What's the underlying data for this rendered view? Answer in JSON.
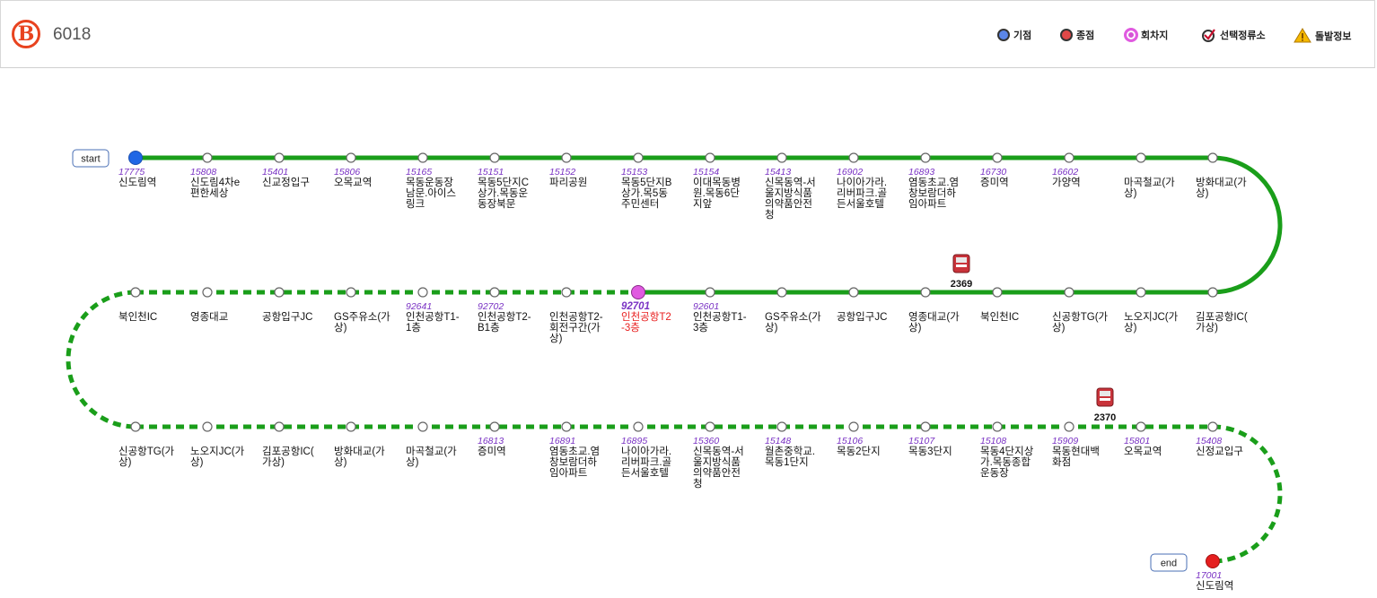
{
  "route": {
    "badge": "B",
    "number": "6018"
  },
  "legend": [
    {
      "label": "기점",
      "icon": "start-point-icon",
      "color": "#3b6fe0"
    },
    {
      "label": "종점",
      "icon": "end-point-icon",
      "color": "#e03b3b"
    },
    {
      "label": "회차지",
      "icon": "turnaround-icon",
      "color": "#e05ae0"
    },
    {
      "label": "선택정류소",
      "icon": "selected-stop-icon",
      "color": "#c8102e"
    },
    {
      "label": "돌발정보",
      "icon": "incident-warning-icon",
      "color": "#f5b800"
    }
  ],
  "tags": {
    "start": "start",
    "end": "end"
  },
  "colors": {
    "solid_line": "#1a9e1a",
    "dashed_line": "#1a9e1a",
    "start_dot": "#1f66e5",
    "end_dot": "#e51f1f",
    "turn_dot": "#e05ae0"
  },
  "rows": [
    [
      {
        "id": "17775",
        "name": [
          "신도림역"
        ]
      },
      {
        "id": "15808",
        "name": [
          "신도림4차e",
          "편한세상"
        ]
      },
      {
        "id": "15401",
        "name": [
          "신교정입구"
        ]
      },
      {
        "id": "15806",
        "name": [
          "오목교역"
        ]
      },
      {
        "id": "15165",
        "name": [
          "목동운동장",
          "남문.아이스",
          "링크"
        ]
      },
      {
        "id": "15151",
        "name": [
          "목동5단지C",
          "상가.목동운",
          "동장북문"
        ]
      },
      {
        "id": "15152",
        "name": [
          "파리공원"
        ]
      },
      {
        "id": "15153",
        "name": [
          "목동5단지B",
          "상가.목5동",
          "주민센터"
        ]
      },
      {
        "id": "15154",
        "name": [
          "이대목동병",
          "원.목동6단",
          "지앞"
        ]
      },
      {
        "id": "15413",
        "name": [
          "신목동역-서",
          "울지방식품",
          "의약품안전",
          "청"
        ]
      },
      {
        "id": "16902",
        "name": [
          "나이아가라.",
          "리버파크.골",
          "든서울호텔"
        ]
      },
      {
        "id": "16893",
        "name": [
          "염동초교.염",
          "창보람더하",
          "임아파트"
        ]
      },
      {
        "id": "16730",
        "name": [
          "증미역"
        ]
      },
      {
        "id": "16602",
        "name": [
          "가양역"
        ]
      },
      {
        "id": "",
        "name": [
          "마곡철교(가",
          "상)"
        ]
      },
      {
        "id": "",
        "name": [
          "방화대교(가",
          "상)"
        ]
      }
    ],
    [
      {
        "id": "",
        "name": [
          "북인천IC"
        ]
      },
      {
        "id": "",
        "name": [
          "영종대교"
        ]
      },
      {
        "id": "",
        "name": [
          "공항입구JC"
        ]
      },
      {
        "id": "",
        "name": [
          "GS주유소(가",
          "상)"
        ]
      },
      {
        "id": "92641",
        "name": [
          "인천공항T1-",
          "1층"
        ]
      },
      {
        "id": "92702",
        "name": [
          "인천공항T2-",
          "B1층"
        ]
      },
      {
        "id": "",
        "name": [
          "인천공항T2-",
          "회전구간(가",
          "상)"
        ]
      },
      {
        "id": "92701",
        "name": [
          "인천공항T2",
          "-3층"
        ],
        "selected": true
      },
      {
        "id": "92601",
        "name": [
          "인천공항T1-",
          "3층"
        ]
      },
      {
        "id": "",
        "name": [
          "GS주유소(가",
          "상)"
        ]
      },
      {
        "id": "",
        "name": [
          "공항입구JC"
        ]
      },
      {
        "id": "",
        "name": [
          "영종대교(가",
          "상)"
        ]
      },
      {
        "id": "",
        "name": [
          "북인천IC"
        ]
      },
      {
        "id": "",
        "name": [
          "신공항TG(가",
          "상)"
        ]
      },
      {
        "id": "",
        "name": [
          "노오지JC(가",
          "상)"
        ]
      },
      {
        "id": "",
        "name": [
          "김포공항IC(",
          "가상)"
        ]
      }
    ],
    [
      {
        "id": "",
        "name": [
          "신공항TG(가",
          "상)"
        ]
      },
      {
        "id": "",
        "name": [
          "노오지JC(가",
          "상)"
        ]
      },
      {
        "id": "",
        "name": [
          "김포공항IC(",
          "가상)"
        ]
      },
      {
        "id": "",
        "name": [
          "방화대교(가",
          "상)"
        ]
      },
      {
        "id": "",
        "name": [
          "마곡철교(가",
          "상)"
        ]
      },
      {
        "id": "16813",
        "name": [
          "증미역"
        ]
      },
      {
        "id": "16891",
        "name": [
          "염동초교.염",
          "창보람더하",
          "임아파트"
        ]
      },
      {
        "id": "16895",
        "name": [
          "나이아가라.",
          "리버파크.골",
          "든서울호텔"
        ]
      },
      {
        "id": "15360",
        "name": [
          "신목동역-서",
          "울지방식품",
          "의약품안전",
          "청"
        ]
      },
      {
        "id": "15148",
        "name": [
          "월촌중학교.",
          "목동1단지"
        ]
      },
      {
        "id": "15106",
        "name": [
          "목동2단지"
        ]
      },
      {
        "id": "15107",
        "name": [
          "목동3단지"
        ]
      },
      {
        "id": "15108",
        "name": [
          "목동4단지상",
          "가.목동종합",
          "운동장"
        ]
      },
      {
        "id": "15909",
        "name": [
          "목동현대백",
          "화점"
        ]
      },
      {
        "id": "15801",
        "name": [
          "오목교역"
        ]
      },
      {
        "id": "15408",
        "name": [
          "신정교입구"
        ]
      }
    ],
    [
      {
        "id": "17001",
        "name": [
          "신도림역"
        ]
      }
    ]
  ],
  "buses": [
    {
      "number": "2369"
    },
    {
      "number": "2370"
    }
  ]
}
